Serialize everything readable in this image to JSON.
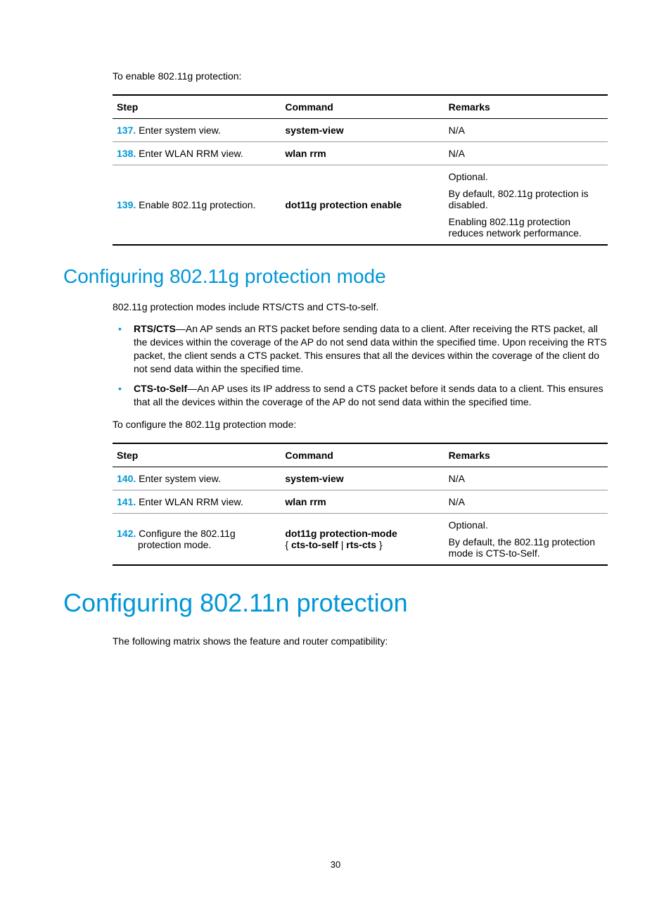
{
  "intro1": "To enable 802.11g protection:",
  "table_headers": {
    "step": "Step",
    "command": "Command",
    "remarks": "Remarks"
  },
  "table1": {
    "rows": [
      {
        "num": "137.",
        "step": "Enter system view.",
        "cmd": "system-view",
        "remarks": [
          "N/A"
        ]
      },
      {
        "num": "138.",
        "step": "Enter WLAN RRM view.",
        "cmd": "wlan rrm",
        "remarks": [
          "N/A"
        ]
      },
      {
        "num": "139.",
        "step": "Enable 802.11g protection.",
        "cmd": "dot11g protection enable",
        "remarks": [
          "Optional.",
          "By default, 802.11g protection is disabled.",
          "Enabling 802.11g protection reduces network performance."
        ]
      }
    ]
  },
  "h2_1": "Configuring 802.11g protection mode",
  "para1": "802.11g protection modes include RTS/CTS and CTS-to-self.",
  "bullets": [
    {
      "lead": "RTS/CTS",
      "text": "—An AP sends an RTS packet before sending data to a client. After receiving the RTS packet, all the devices within the coverage of the AP do not send data within the specified time. Upon receiving the RTS packet, the client sends a CTS packet. This ensures that all the devices within the coverage of the client do not send data within the specified time."
    },
    {
      "lead": "CTS-to-Self",
      "text": "—An AP uses its IP address to send a CTS packet before it sends data to a client. This ensures that all the devices within the coverage of the AP do not send data within the specified time."
    }
  ],
  "intro2": "To configure the 802.11g protection mode:",
  "table2": {
    "rows": [
      {
        "num": "140.",
        "step": "Enter system view.",
        "cmd": "system-view",
        "remarks": [
          "N/A"
        ]
      },
      {
        "num": "141.",
        "step": "Enter WLAN RRM view.",
        "cmd": "wlan rrm",
        "remarks": [
          "N/A"
        ]
      },
      {
        "num": "142.",
        "step": "Configure the 802.11g",
        "step2": "protection mode.",
        "cmd_l1": "dot11g protection-mode",
        "cmd_l2a": "cts-to-self",
        "cmd_l2b": "rts-cts",
        "remarks": [
          "Optional.",
          "By default, the 802.11g protection mode is CTS-to-Self."
        ]
      }
    ]
  },
  "h1_1": "Configuring 802.11n protection",
  "para2": "The following matrix shows the feature and router compatibility:",
  "page_number": "30",
  "colors": {
    "accent": "#0096d6",
    "text": "#000000",
    "bg": "#ffffff"
  },
  "typography": {
    "body_fontsize": 14,
    "h2_fontsize": 28,
    "h1_fontsize": 36
  }
}
